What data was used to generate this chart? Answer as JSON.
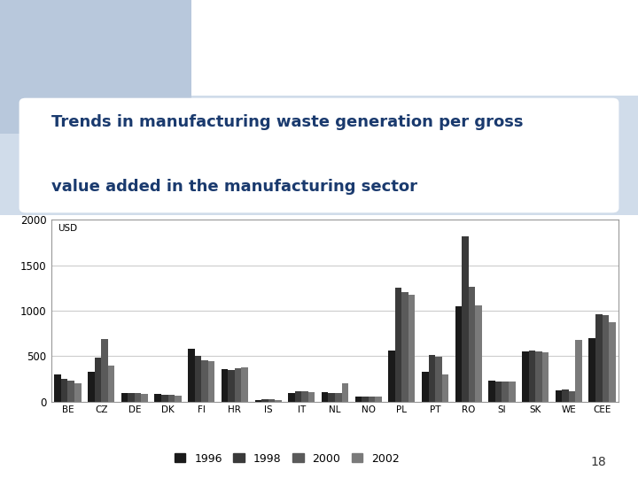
{
  "categories": [
    "BE",
    "CZ",
    "DE",
    "DK",
    "FI",
    "HR",
    "IS",
    "IT",
    "NL",
    "NO",
    "PL",
    "PT",
    "RO",
    "SI",
    "SK",
    "WE",
    "CEE"
  ],
  "series": {
    "1996": [
      300,
      330,
      90,
      80,
      580,
      360,
      20,
      90,
      100,
      55,
      560,
      330,
      1050,
      230,
      550,
      120,
      700
    ],
    "1998": [
      250,
      480,
      90,
      70,
      500,
      350,
      30,
      110,
      90,
      55,
      1250,
      510,
      1820,
      220,
      560,
      130,
      960
    ],
    "2000": [
      230,
      690,
      90,
      70,
      450,
      370,
      25,
      110,
      90,
      55,
      1200,
      490,
      1260,
      220,
      550,
      110,
      950
    ],
    "2002": [
      200,
      400,
      85,
      65,
      440,
      380,
      20,
      100,
      200,
      55,
      1180,
      300,
      1060,
      220,
      540,
      680,
      870
    ]
  },
  "ylim": [
    0,
    2000
  ],
  "yticks": [
    0,
    500,
    1000,
    1500,
    2000
  ],
  "title_line1": "Trends in manufacturing waste generation per gross",
  "title_line2": "value added in the manufacturing sector",
  "title_color": "#1a3a6e",
  "title_fontsize": 13,
  "bg_white": "#ffffff",
  "bg_light_blue": "#b8c8dc",
  "bg_lighter_blue": "#d0dcea",
  "chart_border_color": "#aaaaaa",
  "grid_color": "#cccccc",
  "legend_labels": [
    "1996",
    "1998",
    "2000",
    "2002"
  ],
  "bar_shades": [
    "#1a1a1a",
    "#3a3a3a",
    "#5a5a5a",
    "#7a7a7a"
  ],
  "page_number": "18",
  "bar_width": 0.2
}
